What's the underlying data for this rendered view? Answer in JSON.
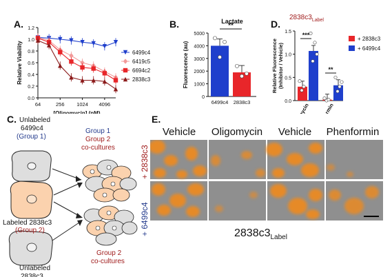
{
  "figure": {
    "panel_labels": [
      "A.",
      "B.",
      "C.",
      "D.",
      "E."
    ]
  },
  "colors": {
    "blue": "#1f3fcc",
    "pink": "#f29a9a",
    "red": "#e8262a",
    "darkred": "#8b1a1a",
    "label_red": "#a01c1c",
    "group1": "#233a8c",
    "fluor_orange": "#f08a1d",
    "micro_gray": "#8f8f8f"
  },
  "chart_data": [
    {
      "panel": "A",
      "type": "line",
      "xlabel": "[Oligomycin] (pM)",
      "ylabel": "Relative Viability",
      "x": [
        64,
        128,
        256,
        512,
        1024,
        2048,
        4096,
        8192
      ],
      "xticks": [
        "64",
        "256",
        "1024",
        "4096"
      ],
      "xscale": "log2",
      "xlim": [
        64,
        8192
      ],
      "yticks": [
        "0.0",
        "0.2",
        "0.4",
        "0.6",
        "0.8",
        "1.0",
        "1.2"
      ],
      "ylim": [
        0,
        1.2
      ],
      "series": [
        {
          "name": "6499c4",
          "color": "#1f3fcc",
          "marker": "triangle-down",
          "values": [
            1.03,
            1.02,
            1.0,
            0.98,
            0.95,
            0.93,
            0.88,
            0.95
          ]
        },
        {
          "name": "6419c5",
          "color": "#f29a9a",
          "marker": "diamond",
          "values": [
            1.03,
            0.98,
            0.82,
            0.72,
            0.6,
            0.55,
            0.45,
            0.35
          ]
        },
        {
          "name": "6694c2",
          "color": "#e8262a",
          "marker": "square",
          "values": [
            1.02,
            0.95,
            0.78,
            0.62,
            0.52,
            0.5,
            0.42,
            0.3
          ]
        },
        {
          "name": "2838c3",
          "color": "#8b1a1a",
          "marker": "triangle-up",
          "values": [
            0.98,
            0.9,
            0.55,
            0.35,
            0.3,
            0.3,
            0.28,
            0.15
          ]
        }
      ]
    },
    {
      "panel": "B",
      "type": "bar",
      "title": "Lactate",
      "ylabel": "Fluorescence (au)",
      "categories": [
        "6499c4",
        "2838c3"
      ],
      "values": [
        4000,
        1900
      ],
      "colors": [
        "#1f3fcc",
        "#e8262a"
      ],
      "points": [
        [
          4600,
          3100,
          4300
        ],
        [
          2400,
          1600,
          1800
        ]
      ],
      "yticks": [
        "0",
        "1000",
        "2000",
        "3000",
        "4000",
        "5000"
      ],
      "ylim": [
        0,
        5000
      ],
      "significance": "**"
    },
    {
      "panel": "D",
      "type": "bar",
      "title_main": "2838c3",
      "title_sub": "Label",
      "ylabel_line1": "Relative Fluorescence",
      "ylabel_line2": "(Inhibitor / Vehicle)",
      "categories": [
        "Oligomycin",
        "Phenformin"
      ],
      "series": [
        {
          "name": "+ 2838c3",
          "color": "#e8262a",
          "values": [
            0.3,
            0.02
          ]
        },
        {
          "name": "+ 6499c4",
          "color": "#1f3fcc",
          "values": [
            1.07,
            0.33
          ]
        }
      ],
      "points": [
        [
          [
            0.42,
            0.22,
            0.3
          ],
          [
            1.45,
            0.85,
            1.25,
            1.0
          ]
        ],
        [
          [
            0.05,
            0.0,
            0.02
          ],
          [
            0.5,
            0.2,
            0.3,
            0.4
          ]
        ]
      ],
      "yticks": [
        "0.0",
        "0.5",
        "1.0",
        "1.5"
      ],
      "ylim": [
        0,
        1.5
      ],
      "significance": [
        "***",
        "**"
      ]
    }
  ],
  "panelC": {
    "unlabeled_top_1": "Unlabeled",
    "unlabeled_top_2": "6499c4",
    "unlabeled_top_3": "(Group 1)",
    "labeled_1": "Labeled 2838c3",
    "labeled_2": "(Group 2)",
    "unlabeled_bottom_1": "Unlabeled",
    "unlabeled_bottom_2": "2838c3",
    "group_text_1": "Group 1",
    "group_text_2": "Group 2",
    "group_text_3": "co-cultures",
    "group_bottom_1": "Group 2",
    "group_bottom_2": "co-cultures"
  },
  "panelE": {
    "columns": [
      "Vehicle",
      "Oligomycin",
      "Vehicle",
      "Phenformin"
    ],
    "rows": [
      "+ 2838c3",
      "+ 6499c4"
    ],
    "footer_main": "2838c3",
    "footer_sub": "Label"
  }
}
